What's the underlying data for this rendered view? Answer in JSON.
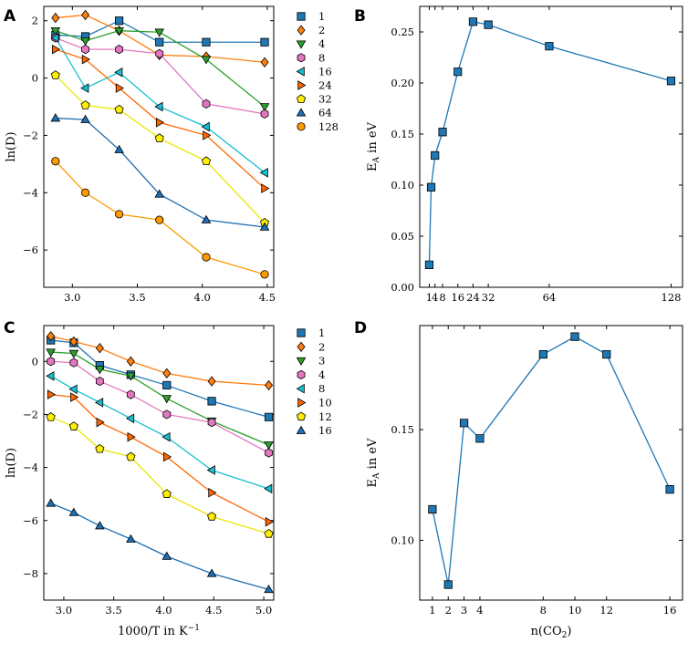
{
  "chart_data": [
    {
      "panel": "A",
      "type": "line",
      "xlabel": "",
      "ylabel": "ln(D)",
      "xlim": [
        2.78,
        4.55
      ],
      "ylim": [
        -7.3,
        2.5
      ],
      "xticks": [
        3.0,
        3.5,
        4.0,
        4.5
      ],
      "xtick_labels": [
        "3.0",
        "3.5",
        "4.0",
        "4.5"
      ],
      "yticks": [
        2,
        0,
        -2,
        -4,
        -6
      ],
      "ytick_labels": [
        "2",
        "0",
        "−2",
        "−4",
        "−6"
      ],
      "x": [
        2.87,
        3.1,
        3.36,
        3.67,
        4.03,
        4.48
      ],
      "series": [
        {
          "name": "1",
          "marker": "square",
          "color": "#1f77b4",
          "line": "#1f77b4",
          "values": [
            1.5,
            1.45,
            2.0,
            1.25,
            1.25,
            1.25
          ]
        },
        {
          "name": "2",
          "marker": "diamond",
          "color": "#ff7f0e",
          "line": "#ff7f0e",
          "values": [
            2.1,
            2.2,
            1.65,
            0.8,
            0.75,
            0.55
          ]
        },
        {
          "name": "4",
          "marker": "triangle-down",
          "color": "#2ca02c",
          "line": "#2ca02c",
          "values": [
            1.65,
            1.3,
            1.65,
            1.6,
            0.65,
            -1.0
          ]
        },
        {
          "name": "8",
          "marker": "hexagon",
          "color": "#e377c2",
          "line": "#e377c2",
          "values": [
            1.4,
            1.0,
            1.0,
            0.85,
            -0.9,
            -1.25
          ]
        },
        {
          "name": "16",
          "marker": "triangle-left",
          "color": "#17becf",
          "line": "#17becf",
          "values": [
            1.4,
            -0.35,
            0.2,
            -1.0,
            -1.7,
            -3.3
          ]
        },
        {
          "name": "24",
          "marker": "triangle-right",
          "color": "#ff6600",
          "line": "#ff6600",
          "values": [
            1.0,
            0.65,
            -0.35,
            -1.55,
            -2.0,
            -3.85
          ]
        },
        {
          "name": "32",
          "marker": "pentagon",
          "color": "#ffee00",
          "line": "#e8e800",
          "values": [
            0.1,
            -0.95,
            -1.1,
            -2.1,
            -2.9,
            -5.05
          ]
        },
        {
          "name": "64",
          "marker": "triangle-up",
          "color": "#1f6fb4",
          "line": "#1f6fb4",
          "values": [
            -1.4,
            -1.45,
            -2.5,
            -4.05,
            -4.95,
            -5.2
          ]
        },
        {
          "name": "128",
          "marker": "circle",
          "color": "#ff9900",
          "line": "#ff9900",
          "values": [
            -2.9,
            -4.0,
            -4.75,
            -4.95,
            -6.25,
            -6.85
          ]
        }
      ]
    },
    {
      "panel": "B",
      "type": "line",
      "xlabel": "",
      "ylabel": "E_A in eV",
      "ylabel_main": "E",
      "ylabel_sub": "A",
      "ylabel_rest": " in eV",
      "xlim": [
        -4,
        134
      ],
      "ylim": [
        0.0,
        0.275
      ],
      "xticks": [
        1,
        4,
        8,
        16,
        24,
        32,
        64,
        128
      ],
      "xtick_labels": [
        "1",
        "4",
        "8",
        "16",
        "24",
        "32",
        "64",
        "128"
      ],
      "xtick_display": [
        "1",
        "4",
        "8",
        "16",
        "24",
        "32",
        "64",
        "128"
      ],
      "yticks": [
        0.0,
        0.05,
        0.1,
        0.15,
        0.2,
        0.25
      ],
      "ytick_labels": [
        "0.00",
        "0.05",
        "0.10",
        "0.15",
        "0.20",
        "0.25"
      ],
      "series": [
        {
          "name": "E_A",
          "marker": "square",
          "color": "#1f77b4",
          "line": "#1f77b4",
          "x": [
            1,
            2,
            4,
            8,
            16,
            24,
            32,
            64,
            128
          ],
          "values": [
            0.022,
            0.098,
            0.129,
            0.152,
            0.211,
            0.26,
            0.257,
            0.236,
            0.202
          ]
        }
      ]
    },
    {
      "panel": "C",
      "type": "line",
      "xlabel": "1000/T in K⁻¹",
      "xlabel_main": "1000/T in K",
      "xlabel_sup": "−1",
      "ylabel": "ln(D)",
      "xlim": [
        2.8,
        5.1
      ],
      "ylim": [
        -9.0,
        1.35
      ],
      "xticks": [
        3.0,
        3.5,
        4.0,
        4.5,
        5.0
      ],
      "xtick_labels": [
        "3.0",
        "3.5",
        "4.0",
        "4.5",
        "5.0"
      ],
      "yticks": [
        0,
        -2,
        -4,
        -6,
        -8
      ],
      "ytick_labels": [
        "0",
        "−2",
        "−4",
        "−6",
        "−8"
      ],
      "x": [
        2.87,
        3.1,
        3.36,
        3.67,
        4.03,
        4.48,
        5.05
      ],
      "series": [
        {
          "name": "1",
          "marker": "square",
          "color": "#1f77b4",
          "line": "#1f77b4",
          "values": [
            0.8,
            0.7,
            -0.15,
            -0.5,
            -0.9,
            -1.5,
            -2.1
          ]
        },
        {
          "name": "2",
          "marker": "diamond",
          "color": "#ff7f0e",
          "line": "#ff7f0e",
          "values": [
            0.95,
            0.75,
            0.5,
            0.0,
            -0.45,
            -0.75,
            -0.9
          ]
        },
        {
          "name": "3",
          "marker": "triangle-down",
          "color": "#2ca02c",
          "line": "#2ca02c",
          "values": [
            0.35,
            0.3,
            -0.3,
            -0.55,
            -1.4,
            -2.25,
            -3.15
          ]
        },
        {
          "name": "4",
          "marker": "hexagon",
          "color": "#e377c2",
          "line": "#e377c2",
          "values": [
            0.0,
            -0.05,
            -0.75,
            -1.25,
            -2.0,
            -2.3,
            -3.45
          ]
        },
        {
          "name": "8",
          "marker": "triangle-left",
          "color": "#17becf",
          "line": "#17becf",
          "values": [
            -0.55,
            -1.05,
            -1.55,
            -2.15,
            -2.85,
            -4.1,
            -4.8
          ]
        },
        {
          "name": "10",
          "marker": "triangle-right",
          "color": "#ff6600",
          "line": "#ff6600",
          "values": [
            -1.25,
            -1.35,
            -2.3,
            -2.85,
            -3.6,
            -4.95,
            -6.05
          ]
        },
        {
          "name": "12",
          "marker": "pentagon",
          "color": "#ffee00",
          "line": "#e8e800",
          "values": [
            -2.1,
            -2.45,
            -3.3,
            -3.6,
            -5.0,
            -5.85,
            -6.5
          ]
        },
        {
          "name": "16",
          "marker": "triangle-up",
          "color": "#1f6fb4",
          "line": "#1f6fb4",
          "values": [
            -5.35,
            -5.7,
            -6.2,
            -6.7,
            -7.35,
            -8.0,
            -8.6
          ]
        }
      ]
    },
    {
      "panel": "D",
      "type": "line",
      "xlabel": "n(CO₂)",
      "xlabel_main": "n(CO",
      "xlabel_sub": "2",
      "xlabel_close": ")",
      "ylabel": "E_A in eV",
      "ylabel_main": "E",
      "ylabel_sub": "A",
      "ylabel_rest": " in eV",
      "xlim": [
        0.2,
        16.8
      ],
      "ylim": [
        0.073,
        0.197
      ],
      "xticks": [
        1,
        2,
        3,
        4,
        8,
        10,
        12,
        16
      ],
      "xtick_labels": [
        "1",
        "2",
        "3",
        "4",
        "8",
        "10",
        "12",
        "16"
      ],
      "yticks": [
        0.1,
        0.15
      ],
      "ytick_labels": [
        "0.10",
        "0.15"
      ],
      "series": [
        {
          "name": "E_A",
          "marker": "square",
          "color": "#1f77b4",
          "line": "#1f77b4",
          "x": [
            1,
            2,
            3,
            4,
            8,
            10,
            12,
            16
          ],
          "values": [
            0.114,
            0.08,
            0.153,
            0.146,
            0.184,
            0.192,
            0.184,
            0.123
          ]
        }
      ]
    }
  ]
}
